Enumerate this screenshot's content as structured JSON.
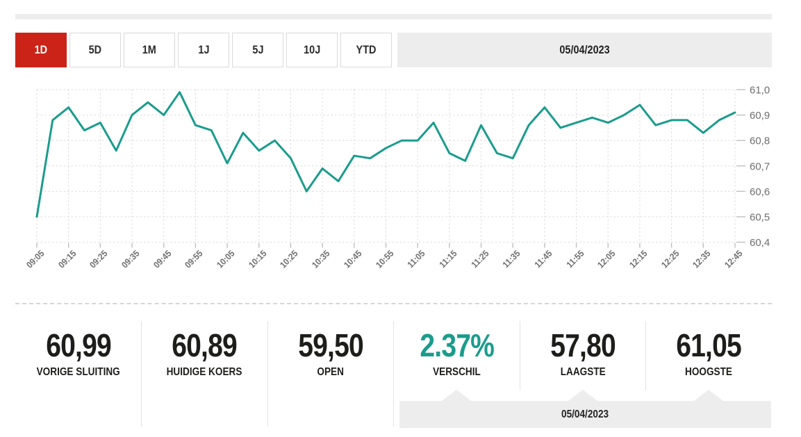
{
  "colors": {
    "accent": "#1a9c8c",
    "active_tab": "#cb2318",
    "panel_gray": "#ededed"
  },
  "toolbar": {
    "tabs": [
      {
        "label": "1D",
        "active": true
      },
      {
        "label": "5D",
        "active": false
      },
      {
        "label": "1M",
        "active": false
      },
      {
        "label": "1J",
        "active": false
      },
      {
        "label": "5J",
        "active": false
      },
      {
        "label": "10J",
        "active": false
      },
      {
        "label": "YTD",
        "active": false
      }
    ],
    "date": "05/04/2023"
  },
  "chart_data": {
    "type": "line",
    "title": "",
    "xlabel": "",
    "ylabel": "",
    "line_color": "#1a9c8c",
    "grid": "dashed",
    "y_axis_side": "right",
    "x_label_rotation": -45,
    "ylim": [
      60.4,
      61.0
    ],
    "y_ticks": [
      61.0,
      60.9,
      60.8,
      60.7,
      60.6,
      60.5,
      60.4
    ],
    "y_tick_labels": [
      "61,0",
      "60,9",
      "60,8",
      "60,7",
      "60,6",
      "60,5",
      "60,4"
    ],
    "x_tick_labels": [
      "09:05",
      "09:15",
      "09:25",
      "09:35",
      "09:45",
      "09:55",
      "10:05",
      "10:15",
      "10:25",
      "10:35",
      "10:45",
      "10:55",
      "11:05",
      "11:15",
      "11:25",
      "11:35",
      "11:45",
      "11:55",
      "12:05",
      "12:15",
      "12:25",
      "12:35",
      "12:45"
    ],
    "x": [
      "09:05",
      "09:10",
      "09:15",
      "09:20",
      "09:25",
      "09:30",
      "09:35",
      "09:40",
      "09:45",
      "09:50",
      "09:55",
      "10:00",
      "10:05",
      "10:10",
      "10:15",
      "10:20",
      "10:25",
      "10:30",
      "10:35",
      "10:40",
      "10:45",
      "10:50",
      "10:55",
      "11:00",
      "11:05",
      "11:10",
      "11:15",
      "11:20",
      "11:25",
      "11:30",
      "11:35",
      "11:40",
      "11:45",
      "11:50",
      "11:55",
      "12:00",
      "12:05",
      "12:10",
      "12:15",
      "12:20",
      "12:25",
      "12:30",
      "12:35",
      "12:40",
      "12:45"
    ],
    "values": [
      60.5,
      60.88,
      60.93,
      60.84,
      60.87,
      60.76,
      60.9,
      60.95,
      60.9,
      60.99,
      60.86,
      60.84,
      60.71,
      60.83,
      60.76,
      60.8,
      60.73,
      60.6,
      60.69,
      60.64,
      60.74,
      60.73,
      60.77,
      60.8,
      60.8,
      60.87,
      60.75,
      60.72,
      60.86,
      60.75,
      60.73,
      60.86,
      60.93,
      60.85,
      60.87,
      60.89,
      60.87,
      60.9,
      60.94,
      60.86,
      60.88,
      60.88,
      60.83,
      60.88,
      60.91
    ]
  },
  "stats": [
    {
      "value": "60,99",
      "label": "VORIGE SLUITING"
    },
    {
      "value": "60,89",
      "label": "HUIDIGE KOERS"
    },
    {
      "value": "59,50",
      "label": "OPEN"
    },
    {
      "value": "2.37%",
      "label": "VERSCHIL"
    },
    {
      "value": "57,80",
      "label": "LAAGSTE"
    },
    {
      "value": "61,05",
      "label": "HOOGSTE"
    }
  ],
  "footer": {
    "date": "05/04/2023"
  }
}
